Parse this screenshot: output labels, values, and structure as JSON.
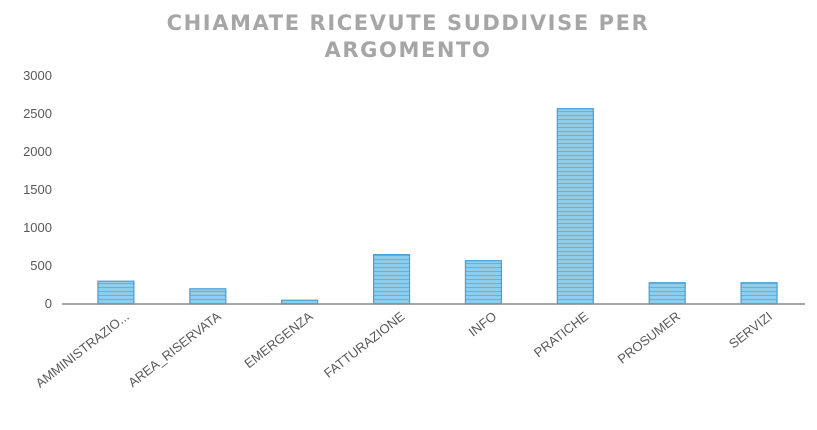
{
  "chart_data": {
    "type": "bar",
    "title_lines": [
      "CHIAMATE RICEVUTE SUDDIVISE PER",
      "ARGOMENTO"
    ],
    "categories": [
      "AMMINISTRAZIO...",
      "AREA_RISERVATA",
      "EMERGENZA",
      "FATTURAZIONE",
      "INFO",
      "PRATICHE",
      "PROSUMER",
      "SERVIZI"
    ],
    "values": [
      300,
      200,
      50,
      650,
      570,
      2570,
      280,
      280
    ],
    "ylim": [
      0,
      3000
    ],
    "yticks": [
      "0",
      "500",
      "1000",
      "1500",
      "2000",
      "2500",
      "3000"
    ],
    "grid": false,
    "legend": "none",
    "colors": {
      "bar_fill": "#8fcdec",
      "bar_stripe": "#5fb3e0",
      "bar_stroke": "#4a9fd0",
      "axis": "#8c8c8c"
    }
  }
}
